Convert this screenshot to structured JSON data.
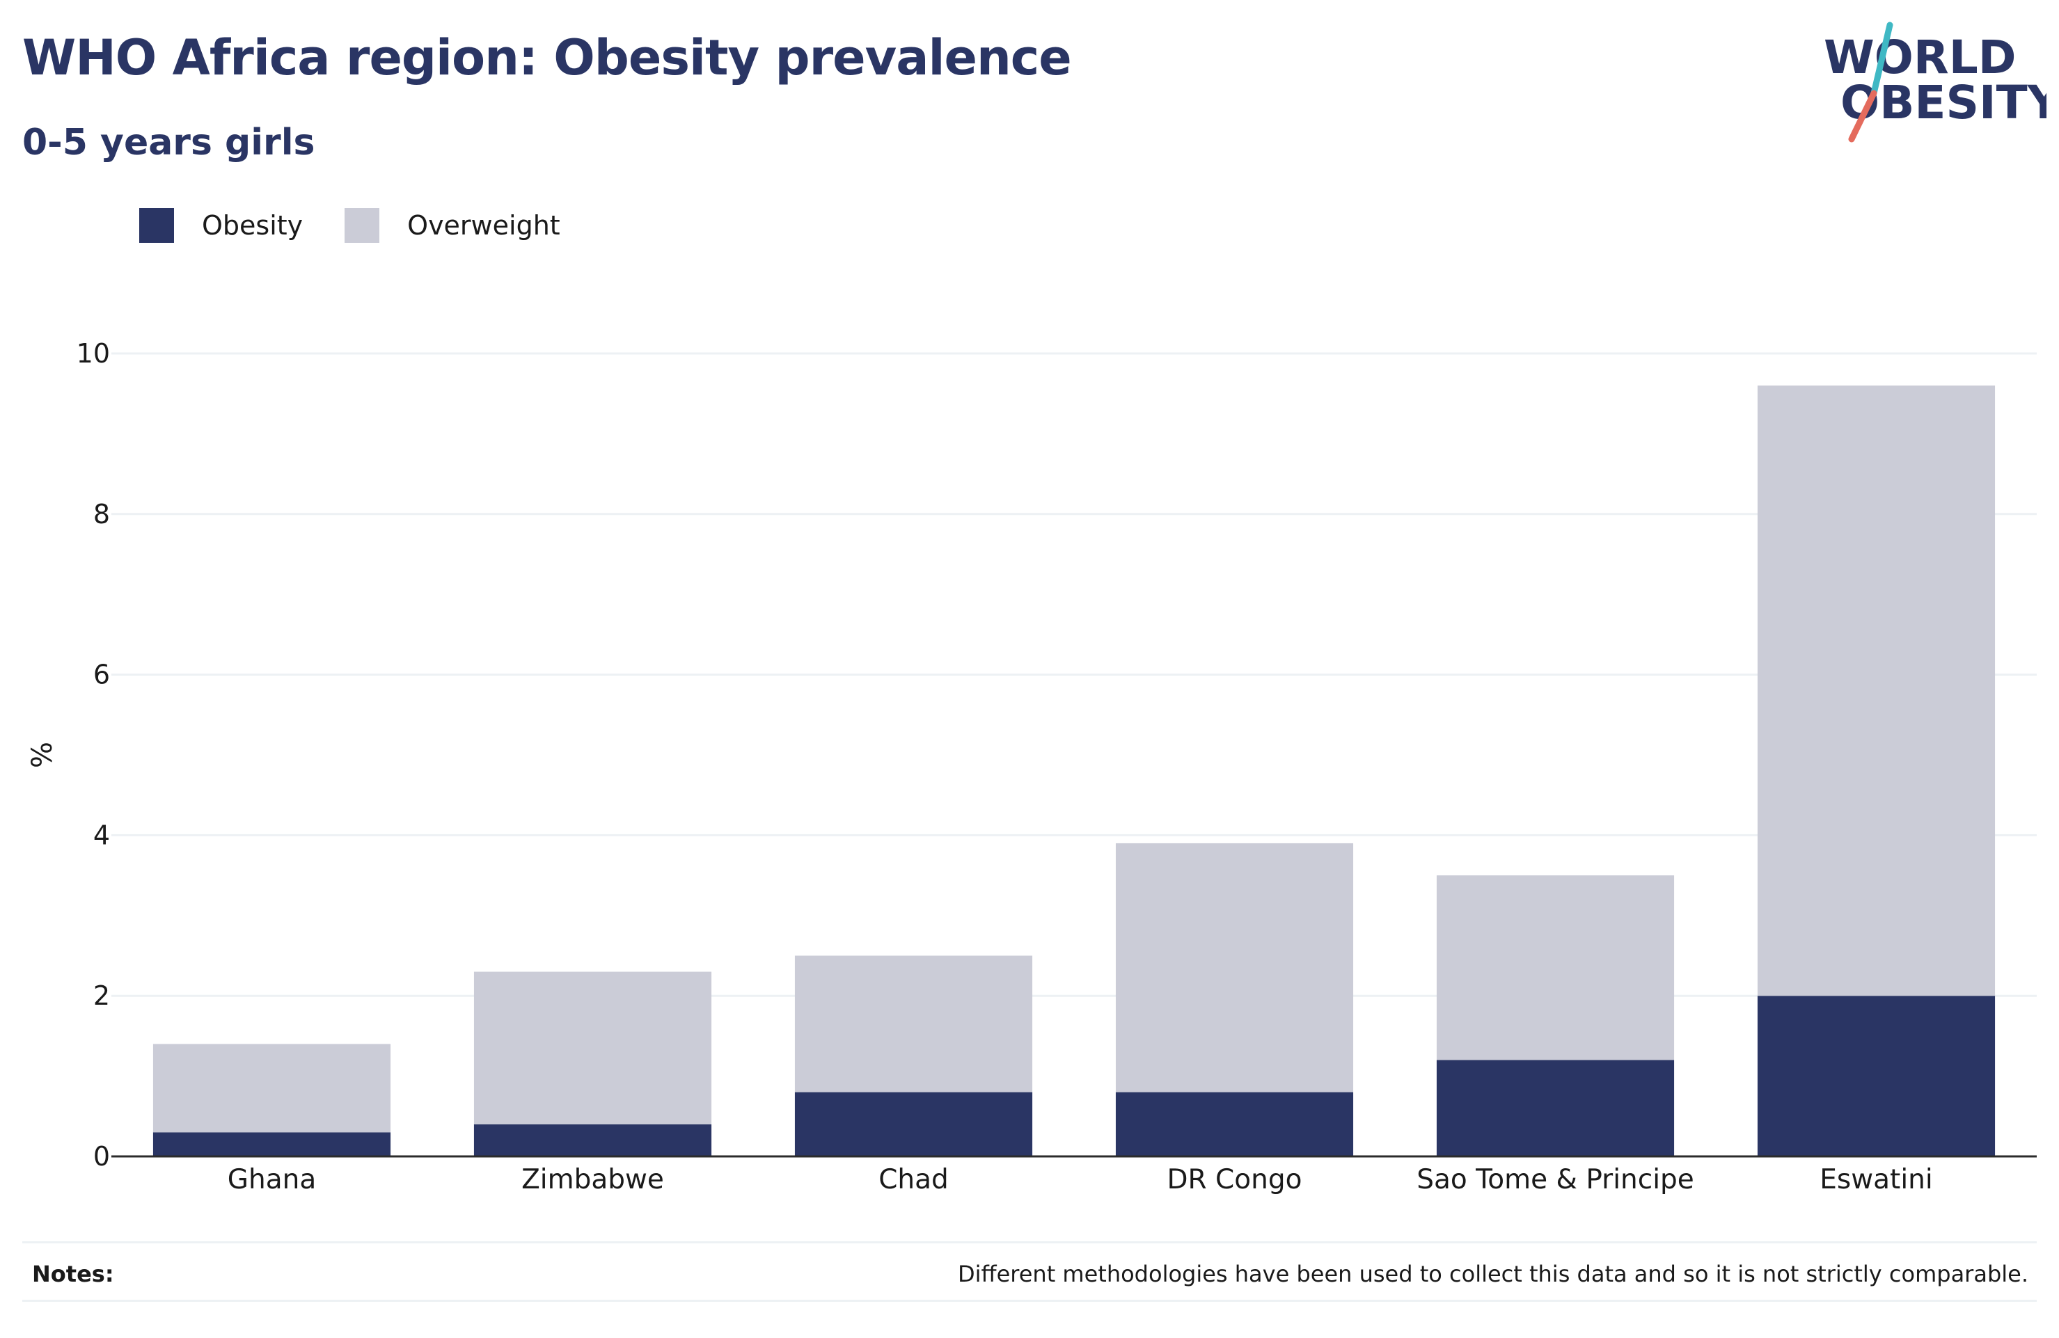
{
  "header": {
    "title": "WHO Africa region: Obesity prevalence",
    "subtitle": "0-5 years girls"
  },
  "logo": {
    "line1": "WORLD",
    "line2": "OBESITY"
  },
  "legend": {
    "items": [
      {
        "label": "Obesity",
        "color": "#2a3564"
      },
      {
        "label": "Overweight",
        "color": "#cbccd7"
      }
    ]
  },
  "chart_data": {
    "type": "bar",
    "stacked": true,
    "categories": [
      "Ghana",
      "Zimbabwe",
      "Chad",
      "DR Congo",
      "Sao Tome & Principe",
      "Eswatini"
    ],
    "series": [
      {
        "name": "Obesity",
        "values": [
          0.3,
          0.4,
          0.8,
          0.8,
          1.2,
          2.0
        ],
        "color": "#2a3564"
      },
      {
        "name": "Overweight",
        "values": [
          1.1,
          1.9,
          1.7,
          3.1,
          2.3,
          7.6
        ],
        "color": "#cbccd7"
      }
    ],
    "xlabel": "",
    "ylabel": "%",
    "ylim": [
      0,
      10
    ],
    "yticks": [
      0,
      2,
      4,
      6,
      8,
      10
    ],
    "grid": true,
    "legend_position": "top-left"
  },
  "notes": {
    "label": "Notes:",
    "text": "Different methodologies have been used to collect this data and so it is not strictly comparable."
  }
}
